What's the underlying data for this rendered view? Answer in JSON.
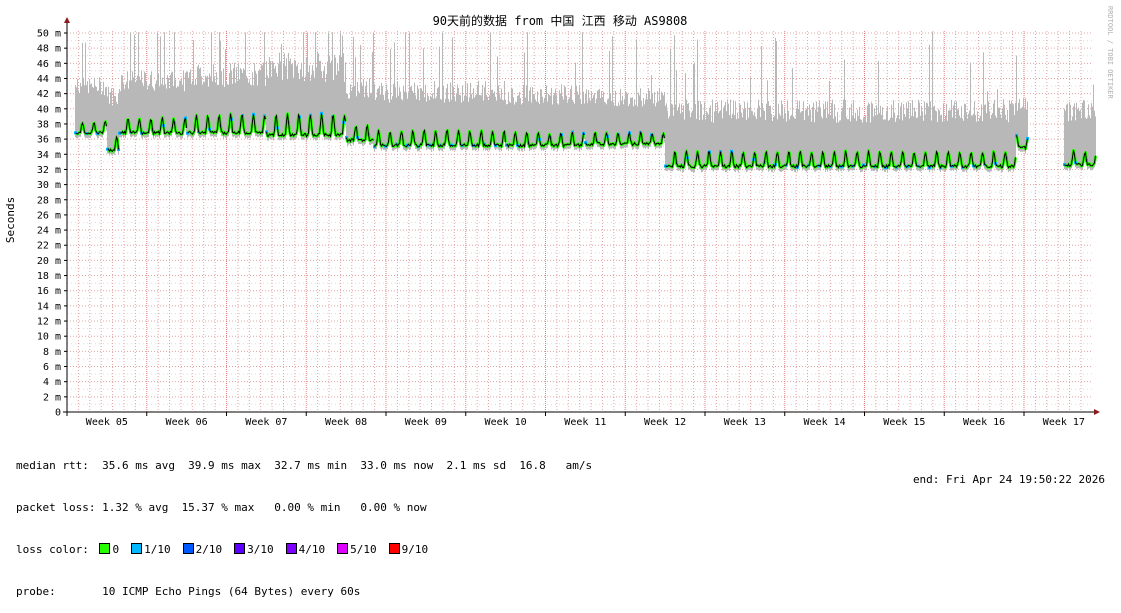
{
  "chart_data": {
    "type": "line",
    "title": "90天前的数据 from  中国 江西 移动 AS9808",
    "ylabel": "Seconds",
    "watermark": "RRDTOOL / TOBI OETIKER",
    "ylim": [
      0,
      51
    ],
    "y_ticks": [
      "0",
      "2 m",
      "4 m",
      "6 m",
      "8 m",
      "10 m",
      "12 m",
      "14 m",
      "16 m",
      "18 m",
      "20 m",
      "22 m",
      "24 m",
      "26 m",
      "28 m",
      "30 m",
      "32 m",
      "34 m",
      "36 m",
      "38 m",
      "40 m",
      "42 m",
      "44 m",
      "46 m",
      "48 m",
      "50 m"
    ],
    "x_ticks": [
      "Week 05",
      "Week 06",
      "Week 07",
      "Week 08",
      "Week 09",
      "Week 10",
      "Week 11",
      "Week 12",
      "Week 13",
      "Week 14",
      "Week 15",
      "Week 16",
      "Week 17"
    ],
    "grid": true,
    "series": [
      {
        "segments": [
          {
            "week_start": 4.6,
            "week_end": 5.0,
            "median_ms": 37.5,
            "peak_ms": 39.0,
            "max_ms": 45.0
          },
          {
            "week_start": 5.0,
            "week_end": 5.15,
            "median_ms": 35.2,
            "peak_ms": 37.0,
            "max_ms": 44.0
          },
          {
            "week_start": 5.15,
            "week_end": 6.0,
            "median_ms": 37.5,
            "peak_ms": 39.5,
            "max_ms": 46.0
          },
          {
            "week_start": 6.0,
            "week_end": 7.0,
            "median_ms": 37.5,
            "peak_ms": 40.0,
            "max_ms": 47.0
          },
          {
            "week_start": 7.0,
            "week_end": 8.0,
            "median_ms": 37.2,
            "peak_ms": 40.0,
            "max_ms": 48.5
          },
          {
            "week_start": 8.0,
            "week_end": 8.35,
            "median_ms": 36.5,
            "peak_ms": 38.5,
            "max_ms": 45.0
          },
          {
            "week_start": 8.35,
            "week_end": 10.0,
            "median_ms": 35.8,
            "peak_ms": 37.8,
            "max_ms": 44.5
          },
          {
            "week_start": 10.0,
            "week_end": 11.0,
            "median_ms": 35.8,
            "peak_ms": 37.5,
            "max_ms": 44.0
          },
          {
            "week_start": 11.0,
            "week_end": 12.0,
            "median_ms": 36.0,
            "peak_ms": 37.5,
            "max_ms": 43.5
          },
          {
            "week_start": 12.0,
            "week_end": 16.4,
            "median_ms": 33.0,
            "peak_ms": 35.0,
            "max_ms": 42.0
          },
          {
            "week_start": 16.4,
            "week_end": 16.55,
            "median_ms": 35.5,
            "peak_ms": 37.0,
            "max_ms": 42.5
          },
          {
            "week_start": 17.0,
            "week_end": 17.4,
            "median_ms": 33.2,
            "peak_ms": 35.0,
            "max_ms": 42.0
          }
        ]
      }
    ],
    "colors": {
      "background": "#ffffff",
      "grid": "#e4a3a3",
      "smoke": "#b8b8b8",
      "median_line": "#000000",
      "loss_0": "#26ff00",
      "loss_1": "#00b8ff",
      "loss_2": "#0059ff",
      "loss_3": "#5e00ff",
      "loss_4": "#7e00ff",
      "loss_5": "#dd00ff",
      "loss_9": "#ff0000",
      "axis_arrow": "#8b1a1a"
    }
  },
  "stats": {
    "median_rtt": "median rtt:  35.6 ms avg  39.9 ms max  32.7 ms min  33.0 ms now  2.1 ms sd  16.8   am/s",
    "packet_loss": "packet loss: 1.32 % avg  15.37 % max   0.00 % min   0.00 % now",
    "loss_color_label": "loss color:",
    "loss_colors": [
      {
        "label": "0",
        "color": "#26ff00"
      },
      {
        "label": "1/10",
        "color": "#00b8ff"
      },
      {
        "label": "2/10",
        "color": "#0059ff"
      },
      {
        "label": "3/10",
        "color": "#5e00ff"
      },
      {
        "label": "4/10",
        "color": "#7e00ff"
      },
      {
        "label": "5/10",
        "color": "#dd00ff"
      },
      {
        "label": "9/10",
        "color": "#ff0000"
      }
    ],
    "probe": "probe:       10 ICMP Echo Pings (64 Bytes) every 60s",
    "end": "end: Fri Apr 24 19:50:22 2026"
  }
}
